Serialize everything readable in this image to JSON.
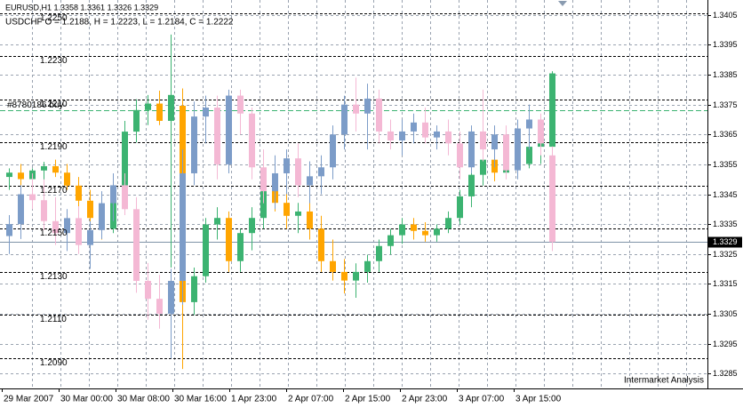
{
  "chart_data": {
    "type": "candlestick",
    "headers": [
      "EURUSD,H1 1.3358 1.3361 1.3326 1.3329",
      "USDCHF O = 1.2188, H = 1.2223, L = 1.2184, C = 1.2222"
    ],
    "ylim": [
      1.328,
      1.341
    ],
    "yticks": [
      1.3405,
      1.3395,
      1.3385,
      1.3375,
      1.3365,
      1.3355,
      1.3345,
      1.3335,
      1.3325,
      1.3315,
      1.3305,
      1.3295,
      1.3285
    ],
    "y2lim": [
      1.2076,
      1.2256
    ],
    "y2ticks": [
      {
        "value": 1.225,
        "label": "1.2250"
      },
      {
        "value": 1.223,
        "label": "1.2230"
      },
      {
        "value": 1.221,
        "label": "1.2210"
      },
      {
        "value": 1.219,
        "label": "1.2190"
      },
      {
        "value": 1.217,
        "label": "1.2170"
      },
      {
        "value": 1.215,
        "label": "1.2150"
      },
      {
        "value": 1.213,
        "label": "1.2130"
      },
      {
        "value": 1.211,
        "label": "1.2110"
      },
      {
        "value": 1.209,
        "label": "1.2090"
      }
    ],
    "x_labels": [
      "29 Mar 2007",
      "30 Mar 00:00",
      "30 Mar 08:00",
      "30 Mar 16:00",
      "1 Apr 23:00",
      "2 Apr 07:00",
      "2 Apr 15:00",
      "2 Apr 23:00",
      "3 Apr 07:00",
      "3 Apr 15:00"
    ],
    "current_price": 1.3329,
    "order": {
      "label": "#8780186 buy",
      "price": 1.3373,
      "color": "#3cb371"
    },
    "footer": "Intermarket Analysis",
    "series": [
      {
        "axis": "y2",
        "up_color": "#3cb371",
        "down_color": "#ffa500",
        "open": [
          1.2174,
          1.2176,
          1.2173,
          1.2177,
          1.2179,
          1.2176,
          1.217,
          1.2163,
          1.2155,
          1.215,
          1.2162,
          1.2195,
          1.2205,
          1.2208,
          1.22,
          1.2207,
          1.2116,
          1.2128,
          1.2152,
          1.2155,
          1.2135,
          1.2148,
          1.2155,
          1.2168,
          1.2162,
          1.2156,
          1.2158,
          1.215,
          1.2135,
          1.213,
          1.2126,
          1.213,
          1.2135,
          1.2142,
          1.2147,
          1.2152,
          1.2149,
          1.2147,
          1.215,
          1.2155,
          1.2165,
          1.2175,
          1.2182,
          1.2176,
          1.219,
          1.218,
          1.2188,
          1.2188
        ],
        "high": [
          1.2178,
          1.218,
          1.2178,
          1.2181,
          1.2182,
          1.218,
          1.2174,
          1.2168,
          1.2162,
          1.2168,
          1.22,
          1.221,
          1.2212,
          1.2214,
          1.224,
          1.2215,
          1.2132,
          1.2155,
          1.216,
          1.2158,
          1.215,
          1.216,
          1.2172,
          1.2175,
          1.2166,
          1.2162,
          1.2162,
          1.2156,
          1.2145,
          1.2136,
          1.2134,
          1.2138,
          1.2145,
          1.215,
          1.2155,
          1.2155,
          1.2153,
          1.2152,
          1.2158,
          1.2168,
          1.2178,
          1.2185,
          1.2188,
          1.2192,
          1.2192,
          1.2196,
          1.2192,
          1.2223
        ],
        "low": [
          1.2168,
          1.217,
          1.2168,
          1.2172,
          1.2174,
          1.2168,
          1.216,
          1.215,
          1.2145,
          1.2148,
          1.216,
          1.219,
          1.2198,
          1.2198,
          1.2132,
          1.2085,
          1.211,
          1.2125,
          1.2145,
          1.213,
          1.213,
          1.214,
          1.215,
          1.2158,
          1.215,
          1.2148,
          1.2145,
          1.213,
          1.2126,
          1.212,
          1.2118,
          1.2125,
          1.213,
          1.2138,
          1.2143,
          1.2145,
          1.2144,
          1.2144,
          1.2148,
          1.2152,
          1.216,
          1.217,
          1.2172,
          1.2174,
          1.2178,
          1.2178,
          1.218,
          1.2184
        ],
        "close": [
          1.2176,
          1.2173,
          1.2177,
          1.2179,
          1.2176,
          1.217,
          1.2163,
          1.2155,
          1.215,
          1.2162,
          1.2195,
          1.2205,
          1.2208,
          1.22,
          1.2212,
          1.2116,
          1.2128,
          1.2152,
          1.2155,
          1.2135,
          1.2148,
          1.2155,
          1.2168,
          1.2162,
          1.2156,
          1.2158,
          1.215,
          1.2135,
          1.213,
          1.2126,
          1.213,
          1.2135,
          1.2142,
          1.2147,
          1.2152,
          1.2149,
          1.2147,
          1.215,
          1.2155,
          1.2165,
          1.2175,
          1.2182,
          1.2176,
          1.219,
          1.218,
          1.2188,
          1.219,
          1.2222
        ]
      },
      {
        "axis": "y",
        "up_color": "#7c9cc8",
        "down_color": "#f4b8d4",
        "open": [
          1.3331,
          1.3335,
          1.3345,
          1.3343,
          1.3336,
          1.3332,
          1.3337,
          1.3328,
          1.3333,
          1.3342,
          1.3348,
          1.334,
          1.3316,
          1.331,
          1.3305,
          1.3316,
          1.3352,
          1.3371,
          1.3374,
          1.3355,
          1.3378,
          1.3372,
          1.3354,
          1.3346,
          1.3352,
          1.3357,
          1.3348,
          1.3351,
          1.3354,
          1.3365,
          1.3375,
          1.3372,
          1.3377,
          1.3366,
          1.3363,
          1.3366,
          1.3369,
          1.3364,
          1.3366,
          1.3362,
          1.3354,
          1.3366,
          1.336,
          1.3365,
          1.3353,
          1.3367,
          1.337,
          1.3358
        ],
        "high": [
          1.3338,
          1.3348,
          1.3352,
          1.335,
          1.3344,
          1.334,
          1.3341,
          1.3336,
          1.3346,
          1.3352,
          1.3352,
          1.3344,
          1.3322,
          1.3318,
          1.332,
          1.336,
          1.3376,
          1.3378,
          1.3378,
          1.338,
          1.338,
          1.3374,
          1.336,
          1.3358,
          1.336,
          1.3362,
          1.3356,
          1.3358,
          1.3368,
          1.3378,
          1.3384,
          1.3382,
          1.338,
          1.337,
          1.337,
          1.3372,
          1.3374,
          1.3368,
          1.337,
          1.3366,
          1.3368,
          1.338,
          1.3368,
          1.3368,
          1.337,
          1.3375,
          1.3372,
          1.3361
        ],
        "low": [
          1.3325,
          1.333,
          1.334,
          1.3333,
          1.3328,
          1.3326,
          1.3325,
          1.332,
          1.333,
          1.3336,
          1.3338,
          1.3312,
          1.3303,
          1.33,
          1.329,
          1.3308,
          1.3348,
          1.3362,
          1.335,
          1.3352,
          1.3365,
          1.335,
          1.3342,
          1.334,
          1.3345,
          1.3344,
          1.3342,
          1.3345,
          1.335,
          1.336,
          1.3366,
          1.336,
          1.3362,
          1.336,
          1.3358,
          1.3362,
          1.3362,
          1.336,
          1.3358,
          1.335,
          1.3352,
          1.3356,
          1.3354,
          1.335,
          1.335,
          1.336,
          1.3358,
          1.3326
        ],
        "close": [
          1.3335,
          1.3345,
          1.3343,
          1.3336,
          1.3332,
          1.3337,
          1.3328,
          1.3333,
          1.3342,
          1.3348,
          1.334,
          1.3316,
          1.331,
          1.3305,
          1.3316,
          1.3352,
          1.3371,
          1.3374,
          1.3355,
          1.3378,
          1.3372,
          1.3354,
          1.3346,
          1.3352,
          1.3357,
          1.3348,
          1.3351,
          1.3354,
          1.3365,
          1.3375,
          1.3372,
          1.3377,
          1.3366,
          1.3363,
          1.3366,
          1.3369,
          1.3364,
          1.3366,
          1.3362,
          1.3354,
          1.3366,
          1.336,
          1.3365,
          1.3353,
          1.3367,
          1.337,
          1.3362,
          1.3329
        ]
      }
    ]
  }
}
